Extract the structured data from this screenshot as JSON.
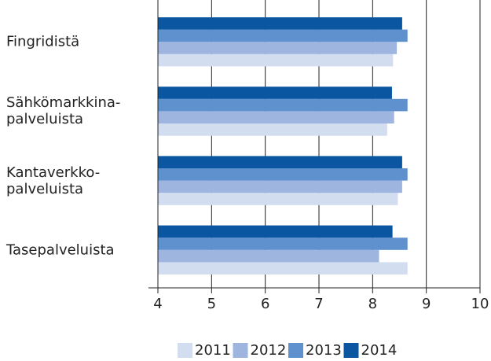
{
  "chart_data": {
    "type": "bar",
    "orientation": "horizontal",
    "categories": [
      "Fingridistä",
      "Sähkömarkkina-\npalveluista",
      "Kantaverkko-\npalveluista",
      "Tasepalveluista"
    ],
    "series": [
      {
        "name": "2011",
        "color": "#d3ddf0",
        "values": [
          8.38,
          8.27,
          8.47,
          8.65
        ]
      },
      {
        "name": "2012",
        "color": "#9db5df",
        "values": [
          8.45,
          8.4,
          8.55,
          8.12
        ]
      },
      {
        "name": "2013",
        "color": "#5f91cf",
        "values": [
          8.65,
          8.65,
          8.65,
          8.65
        ]
      },
      {
        "name": "2014",
        "color": "#0a56a0",
        "values": [
          8.55,
          8.36,
          8.55,
          8.37
        ]
      }
    ],
    "xlim": [
      4,
      10
    ],
    "xticks": [
      4,
      5,
      6,
      7,
      8,
      9,
      10
    ],
    "grid": true,
    "legend": "bottom"
  }
}
